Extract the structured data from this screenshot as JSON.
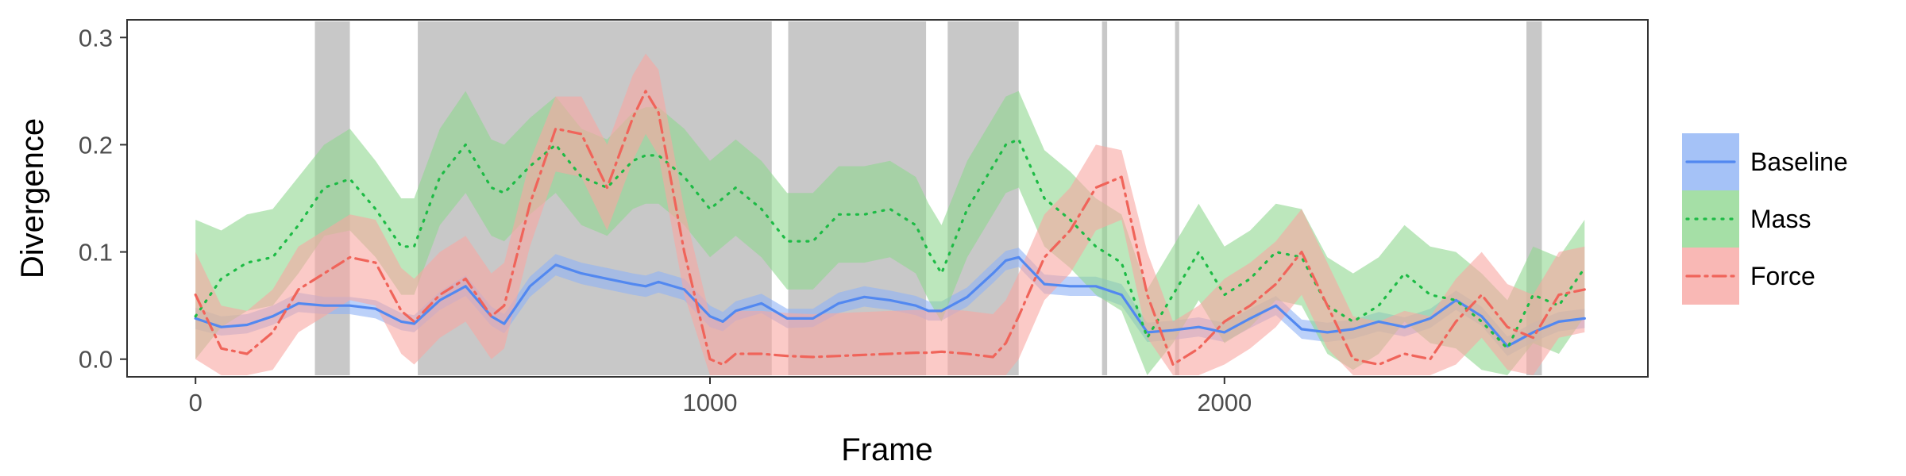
{
  "chart_data": {
    "type": "line",
    "xlabel": "Frame",
    "ylabel": "Divergence",
    "xlim": [
      -130,
      2820
    ],
    "ylim": [
      -0.015,
      0.315
    ],
    "x_ticks": [
      {
        "value": 0,
        "label": "0"
      },
      {
        "value": 1000,
        "label": "1000"
      },
      {
        "value": 2000,
        "label": "2000"
      }
    ],
    "y_ticks": [
      {
        "value": 0.0,
        "label": "0.0"
      },
      {
        "value": 0.1,
        "label": "0.1"
      },
      {
        "value": 0.2,
        "label": "0.2"
      },
      {
        "value": 0.3,
        "label": "0.3"
      }
    ],
    "grid": false,
    "legend_position": "right",
    "shaded_intervals": [
      [
        232,
        300
      ],
      [
        432,
        1120
      ],
      [
        1152,
        1420
      ],
      [
        1462,
        1600
      ],
      [
        1762,
        1772
      ],
      [
        1904,
        1912
      ],
      [
        2587,
        2617
      ]
    ],
    "shade_color": "#c8c8c8",
    "series": [
      {
        "name": "Baseline",
        "color": "#5288f0",
        "band_color": "#8fb3f5",
        "line_style": "solid",
        "x": [
          0,
          50,
          100,
          150,
          200,
          250,
          300,
          350,
          400,
          425,
          475,
          525,
          575,
          600,
          650,
          700,
          750,
          800,
          850,
          875,
          900,
          950,
          1000,
          1025,
          1050,
          1100,
          1150,
          1200,
          1250,
          1300,
          1350,
          1400,
          1425,
          1450,
          1500,
          1550,
          1575,
          1600,
          1650,
          1700,
          1750,
          1800,
          1850,
          1900,
          1950,
          2000,
          2050,
          2100,
          2150,
          2200,
          2250,
          2300,
          2350,
          2400,
          2450,
          2500,
          2550,
          2600,
          2650,
          2700
        ],
        "y": [
          0.038,
          0.03,
          0.032,
          0.04,
          0.052,
          0.05,
          0.05,
          0.047,
          0.035,
          0.033,
          0.055,
          0.068,
          0.04,
          0.033,
          0.068,
          0.088,
          0.08,
          0.075,
          0.07,
          0.068,
          0.072,
          0.065,
          0.04,
          0.035,
          0.045,
          0.052,
          0.038,
          0.038,
          0.052,
          0.058,
          0.055,
          0.05,
          0.045,
          0.045,
          0.058,
          0.08,
          0.092,
          0.095,
          0.07,
          0.068,
          0.068,
          0.06,
          0.025,
          0.027,
          0.03,
          0.025,
          0.038,
          0.05,
          0.028,
          0.025,
          0.028,
          0.035,
          0.03,
          0.038,
          0.055,
          0.04,
          0.012,
          0.025,
          0.035,
          0.038
        ],
        "lower": [
          0.028,
          0.022,
          0.024,
          0.032,
          0.044,
          0.042,
          0.042,
          0.038,
          0.027,
          0.025,
          0.046,
          0.059,
          0.031,
          0.024,
          0.058,
          0.078,
          0.07,
          0.065,
          0.06,
          0.058,
          0.062,
          0.055,
          0.03,
          0.026,
          0.036,
          0.043,
          0.029,
          0.03,
          0.043,
          0.049,
          0.046,
          0.041,
          0.036,
          0.036,
          0.049,
          0.071,
          0.083,
          0.086,
          0.061,
          0.059,
          0.059,
          0.05,
          0.016,
          0.018,
          0.021,
          0.016,
          0.029,
          0.041,
          0.019,
          0.016,
          0.019,
          0.026,
          0.021,
          0.029,
          0.046,
          0.031,
          0.003,
          0.016,
          0.026,
          0.029
        ],
        "upper": [
          0.048,
          0.04,
          0.042,
          0.05,
          0.062,
          0.058,
          0.058,
          0.055,
          0.043,
          0.041,
          0.063,
          0.078,
          0.049,
          0.042,
          0.077,
          0.098,
          0.09,
          0.085,
          0.08,
          0.078,
          0.082,
          0.075,
          0.05,
          0.044,
          0.054,
          0.061,
          0.047,
          0.047,
          0.062,
          0.068,
          0.064,
          0.059,
          0.054,
          0.054,
          0.067,
          0.09,
          0.101,
          0.104,
          0.079,
          0.077,
          0.077,
          0.07,
          0.034,
          0.036,
          0.039,
          0.034,
          0.047,
          0.059,
          0.037,
          0.034,
          0.037,
          0.044,
          0.039,
          0.047,
          0.064,
          0.049,
          0.021,
          0.034,
          0.044,
          0.047
        ]
      },
      {
        "name": "Mass",
        "color": "#1dbb45",
        "band_color": "#8fd790",
        "line_style": "dotted",
        "x": [
          0,
          50,
          100,
          150,
          200,
          250,
          300,
          350,
          400,
          425,
          475,
          525,
          575,
          600,
          650,
          700,
          750,
          800,
          850,
          875,
          900,
          950,
          1000,
          1025,
          1050,
          1100,
          1150,
          1200,
          1250,
          1300,
          1350,
          1400,
          1425,
          1450,
          1500,
          1550,
          1575,
          1600,
          1650,
          1700,
          1750,
          1800,
          1850,
          1900,
          1950,
          2000,
          2050,
          2100,
          2150,
          2200,
          2250,
          2300,
          2350,
          2400,
          2450,
          2500,
          2550,
          2600,
          2650,
          2700
        ],
        "y": [
          0.04,
          0.075,
          0.09,
          0.095,
          0.125,
          0.16,
          0.168,
          0.14,
          0.105,
          0.105,
          0.17,
          0.2,
          0.16,
          0.155,
          0.18,
          0.2,
          0.17,
          0.16,
          0.185,
          0.19,
          0.19,
          0.17,
          0.14,
          0.15,
          0.16,
          0.14,
          0.11,
          0.11,
          0.135,
          0.135,
          0.14,
          0.125,
          0.1,
          0.08,
          0.14,
          0.18,
          0.2,
          0.205,
          0.15,
          0.13,
          0.105,
          0.09,
          0.02,
          0.06,
          0.1,
          0.06,
          0.075,
          0.1,
          0.095,
          0.05,
          0.035,
          0.05,
          0.08,
          0.06,
          0.055,
          0.035,
          0.01,
          0.06,
          0.05,
          0.085
        ],
        "lower": [
          0.0,
          0.03,
          0.045,
          0.05,
          0.08,
          0.115,
          0.12,
          0.095,
          0.06,
          0.06,
          0.125,
          0.155,
          0.115,
          0.11,
          0.135,
          0.155,
          0.125,
          0.115,
          0.14,
          0.145,
          0.145,
          0.125,
          0.095,
          0.105,
          0.115,
          0.095,
          0.065,
          0.065,
          0.09,
          0.09,
          0.095,
          0.08,
          0.055,
          0.035,
          0.095,
          0.135,
          0.155,
          0.16,
          0.105,
          0.085,
          0.06,
          0.045,
          -0.015,
          0.015,
          0.055,
          0.015,
          0.03,
          0.055,
          0.05,
          0.005,
          -0.01,
          0.005,
          0.035,
          0.015,
          0.01,
          -0.01,
          -0.015,
          0.015,
          0.005,
          0.04
        ],
        "upper": [
          0.13,
          0.12,
          0.135,
          0.14,
          0.17,
          0.2,
          0.215,
          0.185,
          0.15,
          0.15,
          0.215,
          0.25,
          0.205,
          0.2,
          0.225,
          0.245,
          0.215,
          0.205,
          0.23,
          0.235,
          0.235,
          0.215,
          0.185,
          0.195,
          0.205,
          0.185,
          0.155,
          0.155,
          0.18,
          0.18,
          0.185,
          0.17,
          0.145,
          0.125,
          0.185,
          0.225,
          0.245,
          0.25,
          0.195,
          0.175,
          0.15,
          0.135,
          0.065,
          0.105,
          0.145,
          0.105,
          0.12,
          0.145,
          0.14,
          0.095,
          0.08,
          0.095,
          0.125,
          0.105,
          0.1,
          0.08,
          0.055,
          0.105,
          0.095,
          0.13
        ]
      },
      {
        "name": "Force",
        "color": "#f0645a",
        "band_color": "#f8a6a2",
        "line_style": "dashdot",
        "x": [
          0,
          50,
          100,
          150,
          200,
          250,
          300,
          350,
          400,
          425,
          475,
          525,
          575,
          600,
          650,
          700,
          750,
          800,
          850,
          875,
          900,
          950,
          1000,
          1025,
          1050,
          1100,
          1150,
          1200,
          1250,
          1300,
          1350,
          1400,
          1425,
          1450,
          1500,
          1550,
          1575,
          1600,
          1650,
          1700,
          1750,
          1800,
          1850,
          1900,
          1950,
          2000,
          2050,
          2100,
          2150,
          2200,
          2250,
          2300,
          2350,
          2400,
          2450,
          2500,
          2550,
          2600,
          2650,
          2700
        ],
        "y": [
          0.06,
          0.01,
          0.005,
          0.025,
          0.065,
          0.08,
          0.095,
          0.09,
          0.045,
          0.035,
          0.06,
          0.075,
          0.04,
          0.05,
          0.145,
          0.215,
          0.21,
          0.16,
          0.225,
          0.25,
          0.23,
          0.1,
          0.0,
          -0.005,
          0.005,
          0.005,
          0.003,
          0.002,
          0.003,
          0.004,
          0.005,
          0.006,
          0.006,
          0.007,
          0.005,
          0.002,
          0.015,
          0.04,
          0.095,
          0.12,
          0.16,
          0.17,
          0.06,
          -0.005,
          0.01,
          0.035,
          0.05,
          0.07,
          0.1,
          0.05,
          0.0,
          -0.005,
          0.005,
          0.0,
          0.035,
          0.06,
          0.03,
          0.02,
          0.06,
          0.065
        ],
        "lower": [
          0.0,
          -0.015,
          -0.015,
          -0.01,
          0.025,
          0.04,
          0.055,
          0.05,
          0.005,
          -0.005,
          0.02,
          0.035,
          0.0,
          0.01,
          0.105,
          0.175,
          0.17,
          0.12,
          0.185,
          0.21,
          0.19,
          0.06,
          -0.015,
          -0.015,
          -0.015,
          -0.015,
          -0.015,
          -0.015,
          -0.015,
          -0.015,
          -0.015,
          -0.015,
          -0.015,
          -0.015,
          -0.015,
          -0.015,
          -0.015,
          0.0,
          0.055,
          0.08,
          0.12,
          0.13,
          0.02,
          -0.015,
          -0.015,
          -0.005,
          0.01,
          0.03,
          0.06,
          0.01,
          -0.015,
          -0.015,
          -0.015,
          -0.015,
          -0.005,
          0.02,
          -0.01,
          -0.015,
          0.02,
          0.025
        ],
        "upper": [
          0.1,
          0.05,
          0.045,
          0.065,
          0.105,
          0.12,
          0.135,
          0.13,
          0.085,
          0.075,
          0.1,
          0.115,
          0.08,
          0.09,
          0.185,
          0.245,
          0.245,
          0.2,
          0.265,
          0.285,
          0.27,
          0.14,
          0.04,
          0.035,
          0.045,
          0.045,
          0.043,
          0.042,
          0.043,
          0.044,
          0.045,
          0.046,
          0.046,
          0.047,
          0.045,
          0.042,
          0.055,
          0.08,
          0.135,
          0.16,
          0.2,
          0.195,
          0.1,
          0.035,
          0.05,
          0.075,
          0.09,
          0.11,
          0.14,
          0.09,
          0.04,
          0.035,
          0.045,
          0.04,
          0.075,
          0.1,
          0.07,
          0.06,
          0.1,
          0.105
        ]
      }
    ]
  }
}
